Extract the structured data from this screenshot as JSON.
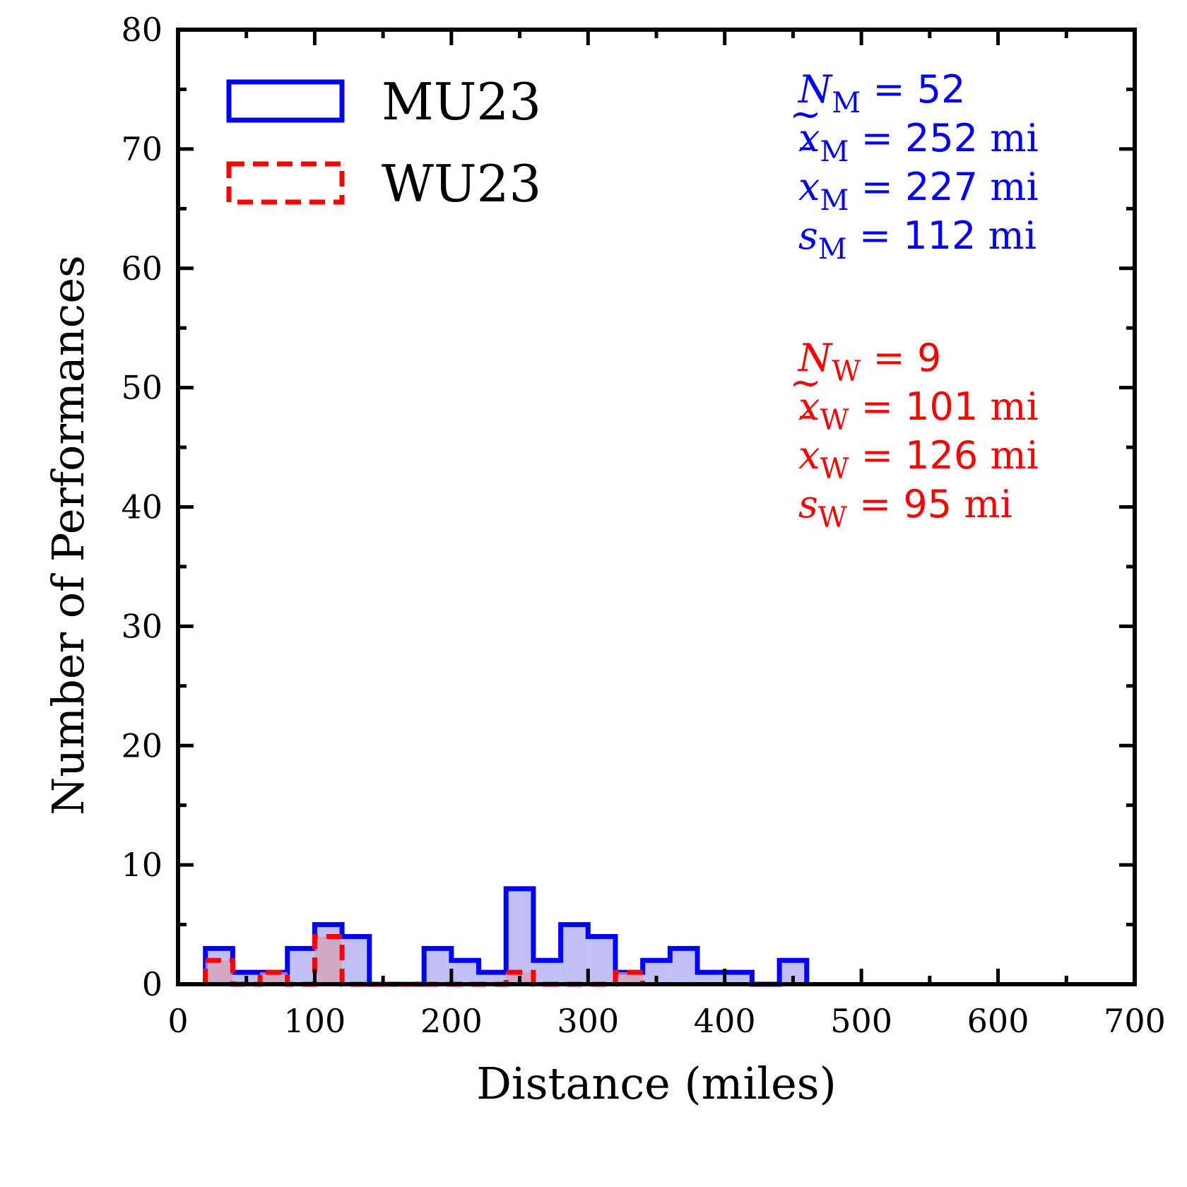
{
  "chart_data": {
    "type": "histogram",
    "xlabel": "Distance (miles)",
    "ylabel": "Number of Performances",
    "xlim": [
      0,
      700
    ],
    "ylim": [
      0,
      80
    ],
    "xticks": [
      0,
      100,
      200,
      300,
      400,
      500,
      600,
      700
    ],
    "yticks": [
      0,
      10,
      20,
      30,
      40,
      50,
      60,
      70,
      80
    ],
    "bin_width": 20,
    "series": [
      {
        "name": "MU23",
        "color": "#0000ff",
        "fill": "#c0c0f6",
        "line_style": "solid",
        "bins": [
          {
            "x0": 20,
            "x1": 40,
            "count": 3
          },
          {
            "x0": 40,
            "x1": 60,
            "count": 1
          },
          {
            "x0": 60,
            "x1": 80,
            "count": 1
          },
          {
            "x0": 80,
            "x1": 100,
            "count": 3
          },
          {
            "x0": 100,
            "x1": 120,
            "count": 5
          },
          {
            "x0": 120,
            "x1": 140,
            "count": 4
          },
          {
            "x0": 140,
            "x1": 160,
            "count": 0
          },
          {
            "x0": 160,
            "x1": 180,
            "count": 0
          },
          {
            "x0": 180,
            "x1": 200,
            "count": 3
          },
          {
            "x0": 200,
            "x1": 220,
            "count": 2
          },
          {
            "x0": 220,
            "x1": 240,
            "count": 1
          },
          {
            "x0": 240,
            "x1": 260,
            "count": 8
          },
          {
            "x0": 260,
            "x1": 280,
            "count": 2
          },
          {
            "x0": 280,
            "x1": 300,
            "count": 5
          },
          {
            "x0": 300,
            "x1": 320,
            "count": 4
          },
          {
            "x0": 320,
            "x1": 340,
            "count": 1
          },
          {
            "x0": 340,
            "x1": 360,
            "count": 2
          },
          {
            "x0": 360,
            "x1": 380,
            "count": 3
          },
          {
            "x0": 380,
            "x1": 400,
            "count": 1
          },
          {
            "x0": 400,
            "x1": 420,
            "count": 1
          },
          {
            "x0": 420,
            "x1": 440,
            "count": 0
          },
          {
            "x0": 440,
            "x1": 460,
            "count": 2
          }
        ]
      },
      {
        "name": "WU23",
        "color": "#ff0000",
        "fill": "#d8a0b4",
        "line_style": "dashed",
        "bins": [
          {
            "x0": 20,
            "x1": 40,
            "count": 2
          },
          {
            "x0": 40,
            "x1": 60,
            "count": 0
          },
          {
            "x0": 60,
            "x1": 80,
            "count": 1
          },
          {
            "x0": 80,
            "x1": 100,
            "count": 0
          },
          {
            "x0": 100,
            "x1": 120,
            "count": 4
          },
          {
            "x0": 120,
            "x1": 140,
            "count": 0
          },
          {
            "x0": 140,
            "x1": 160,
            "count": 0
          },
          {
            "x0": 160,
            "x1": 180,
            "count": 0
          },
          {
            "x0": 180,
            "x1": 200,
            "count": 0
          },
          {
            "x0": 200,
            "x1": 220,
            "count": 0
          },
          {
            "x0": 220,
            "x1": 240,
            "count": 0
          },
          {
            "x0": 240,
            "x1": 260,
            "count": 1
          },
          {
            "x0": 260,
            "x1": 280,
            "count": 0
          },
          {
            "x0": 280,
            "x1": 300,
            "count": 0
          },
          {
            "x0": 300,
            "x1": 320,
            "count": 0
          },
          {
            "x0": 320,
            "x1": 340,
            "count": 1
          }
        ]
      }
    ],
    "legend": {
      "position": "top-left",
      "entries": [
        "MU23",
        "WU23"
      ]
    },
    "annotations": [
      {
        "group": "men",
        "color": "#0000ff",
        "lines": [
          {
            "symbol": "N",
            "accent": "",
            "sub": "M",
            "value": "52",
            "unit": ""
          },
          {
            "symbol": "x",
            "accent": "~",
            "sub": "M",
            "value": "252",
            "unit": "mi"
          },
          {
            "symbol": "x",
            "accent": "¯",
            "sub": "M",
            "value": "227",
            "unit": "mi"
          },
          {
            "symbol": "s",
            "accent": "",
            "sub": "M",
            "value": "112",
            "unit": "mi"
          }
        ]
      },
      {
        "group": "women",
        "color": "#ff0000",
        "lines": [
          {
            "symbol": "N",
            "accent": "",
            "sub": "W",
            "value": "9",
            "unit": ""
          },
          {
            "symbol": "x",
            "accent": "~",
            "sub": "W",
            "value": "101",
            "unit": "mi"
          },
          {
            "symbol": "x",
            "accent": "¯",
            "sub": "W",
            "value": "126",
            "unit": "mi"
          },
          {
            "symbol": "s",
            "accent": "",
            "sub": "W",
            "value": "95",
            "unit": "mi"
          }
        ]
      }
    ]
  }
}
